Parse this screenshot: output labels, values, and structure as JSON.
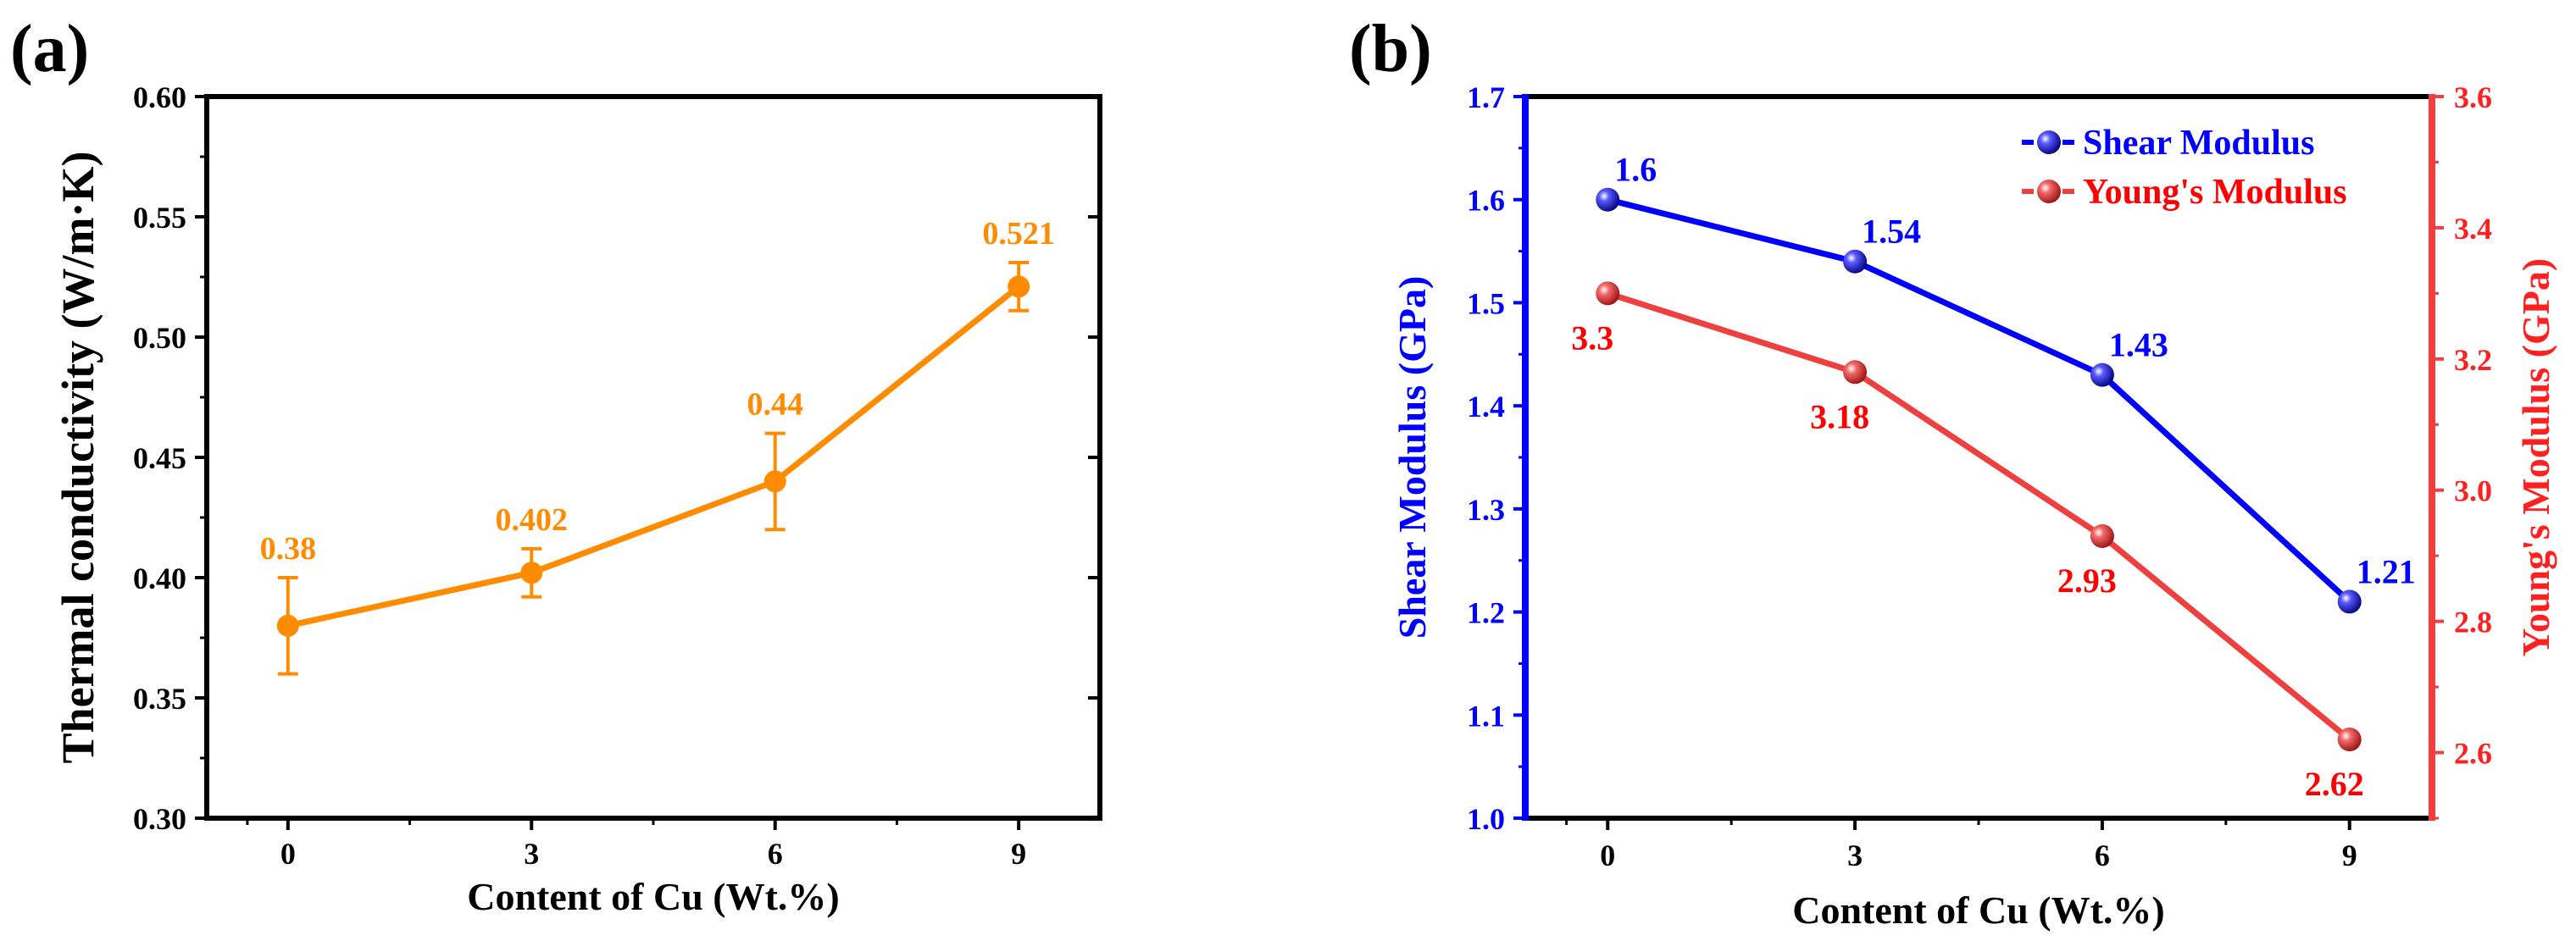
{
  "chart_data": [
    {
      "panel_label": "(a)",
      "type": "line",
      "xlabel": "Content of Cu (Wt.%)",
      "ylabel": "Thermal conductivity (W/m·K)",
      "x": [
        0,
        3,
        6,
        9
      ],
      "x_ticks": [
        "0",
        "3",
        "6",
        "9"
      ],
      "xlim": [
        -1,
        10
      ],
      "ylim": [
        0.3,
        0.6
      ],
      "y_ticks": [
        "0.30",
        "0.35",
        "0.40",
        "0.45",
        "0.50",
        "0.55",
        "0.60"
      ],
      "grid": false,
      "series": [
        {
          "name": "Thermal conductivity",
          "values": [
            0.38,
            0.402,
            0.44,
            0.521
          ],
          "errors": [
            0.02,
            0.01,
            0.02,
            0.01
          ],
          "data_labels": [
            "0.38",
            "0.402",
            "0.44",
            "0.521"
          ],
          "color": "#ff8c00"
        }
      ]
    },
    {
      "panel_label": "(b)",
      "type": "line",
      "xlabel": "Content of Cu (Wt.%)",
      "x": [
        0,
        3,
        6,
        9
      ],
      "x_ticks": [
        "0",
        "3",
        "6",
        "9"
      ],
      "xlim": [
        -1,
        10
      ],
      "ylabel_left": "Shear Modulus (GPa)",
      "ylim_left": [
        1.0,
        1.7
      ],
      "y_ticks_left": [
        "1.0",
        "1.1",
        "1.2",
        "1.3",
        "1.4",
        "1.5",
        "1.6",
        "1.7"
      ],
      "ylabel_right": "Young's Modulus (GPa)",
      "ylim_right": [
        2.5,
        3.6
      ],
      "y_ticks_right": [
        "2.6",
        "2.8",
        "3.0",
        "3.2",
        "3.4",
        "3.6"
      ],
      "legend_position": "top-right",
      "grid": false,
      "series": [
        {
          "name": "Shear Modulus",
          "axis": "left",
          "values": [
            1.6,
            1.54,
            1.43,
            1.21
          ],
          "data_labels": [
            "1.6",
            "1.54",
            "1.43",
            "1.21"
          ],
          "color": "#0000ff"
        },
        {
          "name": "Young's Modulus",
          "axis": "right",
          "values": [
            3.3,
            3.18,
            2.93,
            2.62
          ],
          "data_labels": [
            "3.3",
            "3.18",
            "2.93",
            "2.62"
          ],
          "color": "#ff0000",
          "line_color": "#ef4040"
        }
      ]
    }
  ]
}
